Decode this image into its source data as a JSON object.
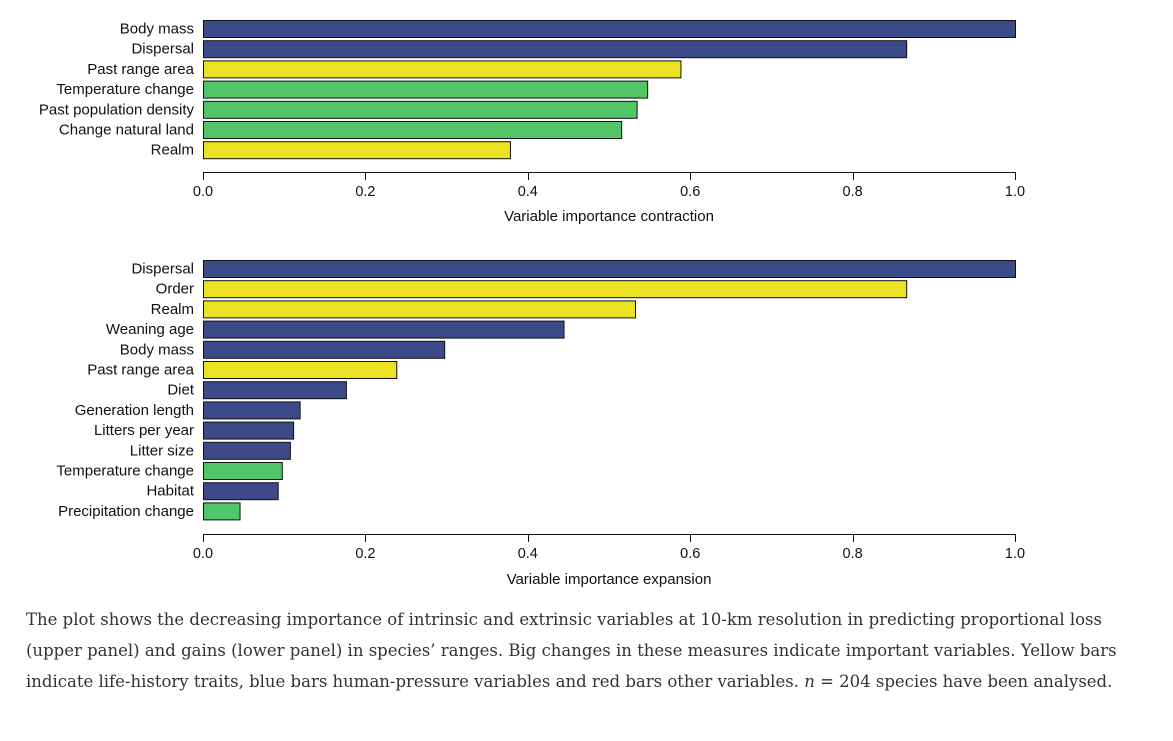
{
  "chart_data": [
    {
      "type": "bar",
      "orientation": "horizontal",
      "panel": "upper",
      "xlabel": "Variable importance contraction",
      "xlim": [
        0,
        1
      ],
      "xticks": [
        "0.0",
        "0.2",
        "0.4",
        "0.6",
        "0.8",
        "1.0"
      ],
      "categories": [
        "Body mass",
        "Dispersal",
        "Past range area",
        "Temperature change",
        "Past population density",
        "Change natural land",
        "Realm"
      ],
      "values": [
        1.0,
        0.866,
        0.588,
        0.547,
        0.534,
        0.515,
        0.378
      ],
      "groups": [
        "blue",
        "blue",
        "yellow",
        "green",
        "green",
        "green",
        "yellow"
      ]
    },
    {
      "type": "bar",
      "orientation": "horizontal",
      "panel": "lower",
      "xlabel": "Variable importance expansion",
      "xlim": [
        0,
        1
      ],
      "xticks": [
        "0.0",
        "0.2",
        "0.4",
        "0.6",
        "0.8",
        "1.0"
      ],
      "categories": [
        "Dispersal",
        "Order",
        "Realm",
        "Weaning age",
        "Body mass",
        "Past range area",
        "Diet",
        "Generation length",
        "Litters per year",
        "Litter size",
        "Temperature change",
        "Habitat",
        "Precipitation change"
      ],
      "values": [
        1.0,
        0.866,
        0.532,
        0.444,
        0.297,
        0.238,
        0.176,
        0.119,
        0.111,
        0.107,
        0.097,
        0.092,
        0.045
      ],
      "groups": [
        "blue",
        "yellow",
        "yellow",
        "blue",
        "blue",
        "yellow",
        "blue",
        "blue",
        "blue",
        "blue",
        "green",
        "blue",
        "green"
      ]
    }
  ],
  "colors": {
    "blue": "#3d4a8a",
    "yellow": "#ece224",
    "green": "#52c569",
    "outline": "#111111"
  },
  "caption": {
    "part1": "The plot shows the decreasing importance of intrinsic and extrinsic variables at 10-km resolution in predicting proportional loss (upper panel) and gains (lower panel) in species’ ranges. Big changes in these measures indicate important variables. Yellow bars indicate life-history traits, blue bars human-pressure variables and red bars other variables. ",
    "n_symbol": "n",
    "part2": " = 204 species have been analysed."
  }
}
